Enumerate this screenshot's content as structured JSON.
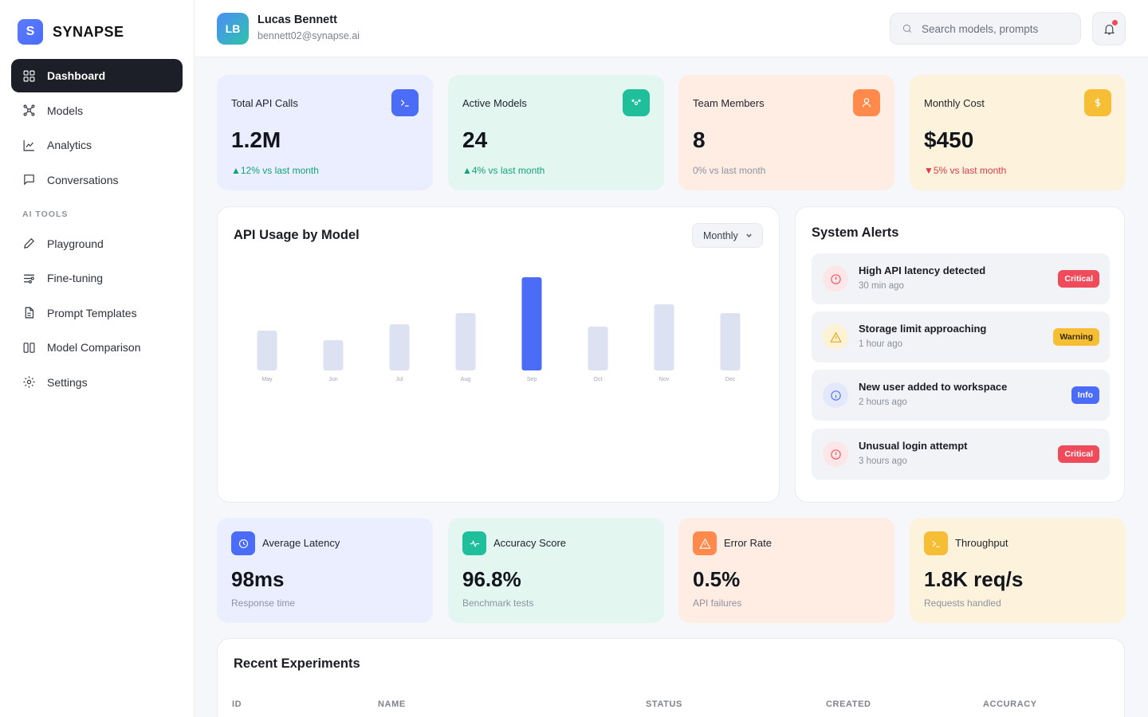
{
  "app": {
    "logo_letter": "S",
    "name": "SYNAPSE"
  },
  "sidebar": {
    "main_items": [
      {
        "label": "Dashboard",
        "icon": "grid-icon",
        "active": true
      },
      {
        "label": "Models",
        "icon": "network-icon"
      },
      {
        "label": "Analytics",
        "icon": "line-chart-icon"
      },
      {
        "label": "Conversations",
        "icon": "chat-icon"
      }
    ],
    "section_label": "AI TOOLS",
    "tool_items": [
      {
        "label": "Playground",
        "icon": "pencil-icon"
      },
      {
        "label": "Fine-tuning",
        "icon": "sliders-icon"
      },
      {
        "label": "Prompt Templates",
        "icon": "file-icon"
      },
      {
        "label": "Model Comparison",
        "icon": "columns-icon"
      },
      {
        "label": "Settings",
        "icon": "gear-icon"
      }
    ]
  },
  "header": {
    "avatar_initials": "LB",
    "user_name": "Lucas Bennett",
    "user_email": "bennett02@synapse.ai",
    "search_placeholder": "Search models, prompts",
    "notification_dot": true
  },
  "stats": [
    {
      "label": "Total API Calls",
      "value": "1.2M",
      "change": "▲12% vs last month",
      "trend": "up",
      "icon": "terminal-icon",
      "bg": "#eaeeff",
      "icon_bg": "#4a6cf7"
    },
    {
      "label": "Active Models",
      "value": "24",
      "change": "▲4% vs last month",
      "trend": "up",
      "icon": "nodes-icon",
      "bg": "#e3f6f0",
      "icon_bg": "#1fbf9b"
    },
    {
      "label": "Team Members",
      "value": "8",
      "change": "0% vs last month",
      "trend": "neutral",
      "icon": "user-icon",
      "bg": "#ffece3",
      "icon_bg": "#ff8a4c"
    },
    {
      "label": "Monthly Cost",
      "value": "$450",
      "change": "▼5% vs last month",
      "trend": "down",
      "icon": "dollar-icon",
      "bg": "#fdf3dc",
      "icon_bg": "#f5be35"
    }
  ],
  "chart_panel": {
    "title": "API Usage by Model",
    "period": "Monthly"
  },
  "chart_data": {
    "type": "bar",
    "categories": [
      "May",
      "Jun",
      "Jul",
      "Aug",
      "Sep",
      "Oct",
      "Nov",
      "Dec"
    ],
    "values": [
      50,
      38,
      58,
      72,
      117,
      55,
      83,
      72
    ],
    "highlight_index": 4,
    "title": "API Usage by Model",
    "xlabel": "",
    "ylabel": "",
    "ylim": [
      0,
      120
    ],
    "grid": false,
    "colors": {
      "bar": "#dde2f3",
      "highlight": "#4a6cf7"
    }
  },
  "alerts_panel": {
    "title": "System Alerts",
    "items": [
      {
        "title": "High API latency detected",
        "time": "30 min ago",
        "badge": "Critical",
        "level": "critical"
      },
      {
        "title": "Storage limit approaching",
        "time": "1 hour ago",
        "badge": "Warning",
        "level": "warning"
      },
      {
        "title": "New user added to workspace",
        "time": "2 hours ago",
        "badge": "Info",
        "level": "info"
      },
      {
        "title": "Unusual login attempt",
        "time": "3 hours ago",
        "badge": "Critical",
        "level": "critical"
      }
    ]
  },
  "metrics": [
    {
      "label": "Average Latency",
      "value": "98ms",
      "sub": "Response time",
      "icon": "clock-icon",
      "bg": "#eaeeff",
      "icon_bg": "#4a6cf7"
    },
    {
      "label": "Accuracy Score",
      "value": "96.8%",
      "sub": "Benchmark tests",
      "icon": "pulse-icon",
      "bg": "#e3f6f0",
      "icon_bg": "#1fbf9b"
    },
    {
      "label": "Error Rate",
      "value": "0.5%",
      "sub": "API failures",
      "icon": "warning-icon",
      "bg": "#ffece3",
      "icon_bg": "#ff8a4c"
    },
    {
      "label": "Throughput",
      "value": "1.8K req/s",
      "sub": "Requests handled",
      "icon": "terminal-icon",
      "bg": "#fdf3dc",
      "icon_bg": "#f5be35"
    }
  ],
  "experiments": {
    "title": "Recent Experiments",
    "columns": [
      "ID",
      "NAME",
      "STATUS",
      "CREATED",
      "ACCURACY"
    ]
  },
  "colors": {
    "critical": "#ef4b5a",
    "warning": "#f5be35",
    "info": "#4a6cf7",
    "critical_soft": "#fde6e8",
    "warning_soft": "#fdf1d6",
    "info_soft": "#e3e8fd"
  }
}
